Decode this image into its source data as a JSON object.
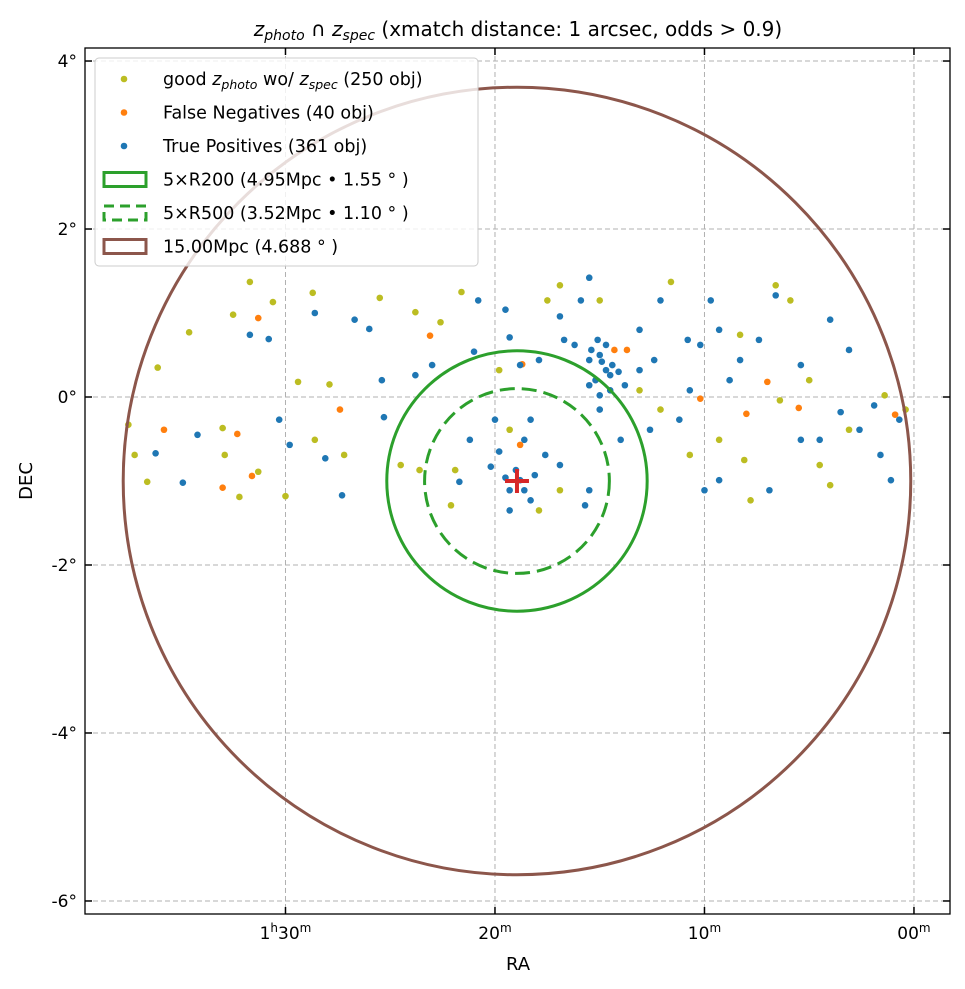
{
  "chart_data": {
    "type": "scatter",
    "title": {
      "z1": "z",
      "s1": "photo",
      "mid": " ∩ ",
      "z2": "z",
      "s2": "spec",
      "rest": " (xmatch distance: 1 arcsec, odds > 0.9)"
    },
    "xlabel": "RA",
    "ylabel": "DEC",
    "xlim": [
      39.57,
      -1.72
    ],
    "ylim": [
      -6.155,
      4.155
    ],
    "x_units": "RA minutes (hour 1 offset: 1h00m = 60)",
    "grid": true,
    "legend_placement": "top-left",
    "xticks": [
      {
        "value": 30,
        "parts": [
          [
            "1",
            ""
          ],
          [
            "h",
            "sup"
          ],
          [
            "30",
            ""
          ],
          [
            "m",
            "sup"
          ]
        ]
      },
      {
        "value": 20,
        "parts": [
          [
            "20",
            ""
          ],
          [
            "m",
            "sup"
          ]
        ]
      },
      {
        "value": 10,
        "parts": [
          [
            "10",
            ""
          ],
          [
            "m",
            "sup"
          ]
        ]
      },
      {
        "value": 0,
        "parts": [
          [
            "00",
            ""
          ],
          [
            "m",
            "sup"
          ]
        ]
      }
    ],
    "yticks": [
      {
        "value": 4,
        "label": "4°"
      },
      {
        "value": 2,
        "label": "2°"
      },
      {
        "value": 0,
        "label": "0°"
      },
      {
        "value": -2,
        "label": "-2°"
      },
      {
        "value": -4,
        "label": "-4°"
      },
      {
        "value": -6,
        "label": "-6°"
      }
    ],
    "center": {
      "ra": 18.95,
      "dec": -1.0,
      "color": "#d62728"
    },
    "circles": [
      {
        "name": "5xR200",
        "radius_deg": 1.55,
        "style": "solid",
        "color": "#2ca02c"
      },
      {
        "name": "5xR500",
        "radius_deg": 1.1,
        "style": "dashed",
        "color": "#2ca02c"
      },
      {
        "name": "15Mpc",
        "radius_deg": 4.688,
        "style": "solid",
        "color": "#8c564b"
      }
    ],
    "legend": [
      {
        "kind": "dot",
        "color": "#bcbd22",
        "pre": "good ",
        "z1": "z",
        "s1": "photo",
        "mid": " wo/ ",
        "z2": "z",
        "s2": "spec",
        "post": " (250 obj)"
      },
      {
        "kind": "dot",
        "color": "#ff7f0e",
        "text": "False Negatives (40 obj)"
      },
      {
        "kind": "dot",
        "color": "#1f77b4",
        "text": "True Positives (361 obj)"
      },
      {
        "kind": "rect",
        "color": "#2ca02c",
        "style": "solid",
        "text": "5×R200 (4.95Mpc • 1.55$^\\circ$)",
        "display": "5×R200 (4.95Mpc • 1.55 ° )"
      },
      {
        "kind": "rect",
        "color": "#2ca02c",
        "style": "dashed",
        "text": "5×R500 (3.52Mpc • 1.10 ° )",
        "display": "5×R500 (3.52Mpc • 1.10 ° )"
      },
      {
        "kind": "rect",
        "color": "#8c564b",
        "style": "solid",
        "text": "15.00Mpc (4.688 ° )",
        "display": "15.00Mpc (4.688 ° )"
      }
    ],
    "series": [
      {
        "name": "good z_photo wo/ z_spec",
        "color": "#bcbd22",
        "points": [
          [
            37.5,
            -0.33
          ],
          [
            37.2,
            -0.69
          ],
          [
            36.6,
            -1.01
          ],
          [
            36.1,
            0.35
          ],
          [
            34.6,
            0.77
          ],
          [
            33.0,
            -0.37
          ],
          [
            32.5,
            0.98
          ],
          [
            31.7,
            1.37
          ],
          [
            31.3,
            -0.89
          ],
          [
            30.6,
            1.13
          ],
          [
            30.0,
            -1.18
          ],
          [
            29.4,
            0.18
          ],
          [
            28.7,
            1.24
          ],
          [
            27.9,
            0.15
          ],
          [
            27.2,
            -0.69
          ],
          [
            25.5,
            1.18
          ],
          [
            23.8,
            1.01
          ],
          [
            22.6,
            0.89
          ],
          [
            21.6,
            1.25
          ],
          [
            24.5,
            -0.81
          ],
          [
            23.6,
            -0.87
          ],
          [
            21.9,
            -0.87
          ],
          [
            22.1,
            -1.29
          ],
          [
            19.8,
            0.32
          ],
          [
            19.3,
            -0.39
          ],
          [
            17.5,
            1.15
          ],
          [
            16.9,
            1.33
          ],
          [
            15.0,
            1.15
          ],
          [
            13.1,
            0.08
          ],
          [
            12.1,
            -0.15
          ],
          [
            11.6,
            1.37
          ],
          [
            10.7,
            -0.69
          ],
          [
            9.3,
            -0.51
          ],
          [
            8.1,
            -0.75
          ],
          [
            7.8,
            -1.23
          ],
          [
            6.6,
            1.33
          ],
          [
            5.9,
            1.15
          ],
          [
            5.0,
            0.2
          ],
          [
            4.5,
            -0.81
          ],
          [
            4.0,
            -1.05
          ],
          [
            3.1,
            -0.39
          ],
          [
            1.4,
            0.02
          ],
          [
            0.4,
            -0.15
          ],
          [
            6.4,
            -0.04
          ],
          [
            8.3,
            0.74
          ],
          [
            16.9,
            -1.11
          ],
          [
            17.9,
            -1.35
          ],
          [
            28.6,
            -0.51
          ],
          [
            32.9,
            -0.69
          ],
          [
            32.2,
            -1.19
          ]
        ]
      },
      {
        "name": "False Negatives",
        "color": "#ff7f0e",
        "points": [
          [
            35.8,
            -0.39
          ],
          [
            33.0,
            -1.08
          ],
          [
            32.3,
            -0.44
          ],
          [
            31.6,
            -0.94
          ],
          [
            31.3,
            0.94
          ],
          [
            27.4,
            -0.15
          ],
          [
            18.7,
            0.39
          ],
          [
            14.3,
            0.56
          ],
          [
            13.7,
            0.56
          ],
          [
            10.2,
            -0.02
          ],
          [
            8.0,
            -0.2
          ],
          [
            7.0,
            0.18
          ],
          [
            5.5,
            -0.13
          ],
          [
            0.9,
            -0.21
          ],
          [
            18.8,
            -0.57
          ],
          [
            23.1,
            0.73
          ]
        ]
      },
      {
        "name": "True Positives",
        "color": "#1f77b4",
        "points": [
          [
            36.2,
            -0.67
          ],
          [
            34.9,
            -1.02
          ],
          [
            34.2,
            -0.45
          ],
          [
            31.7,
            0.74
          ],
          [
            30.8,
            0.69
          ],
          [
            30.3,
            -0.27
          ],
          [
            29.8,
            -0.57
          ],
          [
            28.6,
            1.0
          ],
          [
            28.1,
            -0.73
          ],
          [
            27.3,
            -1.17
          ],
          [
            26.7,
            0.92
          ],
          [
            26.0,
            0.81
          ],
          [
            25.4,
            0.2
          ],
          [
            25.3,
            -0.24
          ],
          [
            23.8,
            0.26
          ],
          [
            23.0,
            0.38
          ],
          [
            21.0,
            0.54
          ],
          [
            20.8,
            1.15
          ],
          [
            19.5,
            1.04
          ],
          [
            19.3,
            0.71
          ],
          [
            18.8,
            0.38
          ],
          [
            17.9,
            0.44
          ],
          [
            16.9,
            0.96
          ],
          [
            15.9,
            1.15
          ],
          [
            15.5,
            1.42
          ],
          [
            15.1,
            0.68
          ],
          [
            15.0,
            0.5
          ],
          [
            14.9,
            0.42
          ],
          [
            14.7,
            0.32
          ],
          [
            14.5,
            0.26
          ],
          [
            15.2,
            0.2
          ],
          [
            15.5,
            0.14
          ],
          [
            15.0,
            0.02
          ],
          [
            14.4,
            0.38
          ],
          [
            14.1,
            0.3
          ],
          [
            15.5,
            0.44
          ],
          [
            15.4,
            0.56
          ],
          [
            14.7,
            0.62
          ],
          [
            14.5,
            0.08
          ],
          [
            13.8,
            0.14
          ],
          [
            13.1,
            0.32
          ],
          [
            12.4,
            0.44
          ],
          [
            12.1,
            1.15
          ],
          [
            10.8,
            0.68
          ],
          [
            9.7,
            1.15
          ],
          [
            9.3,
            0.8
          ],
          [
            8.3,
            0.44
          ],
          [
            7.4,
            0.68
          ],
          [
            6.6,
            1.21
          ],
          [
            5.4,
            0.38
          ],
          [
            4.0,
            0.92
          ],
          [
            3.1,
            0.56
          ],
          [
            3.5,
            -0.18
          ],
          [
            2.6,
            -0.39
          ],
          [
            1.9,
            -0.1
          ],
          [
            1.1,
            -0.99
          ],
          [
            0.7,
            -0.27
          ],
          [
            1.6,
            -0.69
          ],
          [
            4.5,
            -0.51
          ],
          [
            5.4,
            -0.51
          ],
          [
            6.9,
            -1.11
          ],
          [
            9.3,
            -0.99
          ],
          [
            10.0,
            -1.11
          ],
          [
            11.2,
            -0.27
          ],
          [
            12.6,
            -0.39
          ],
          [
            14.0,
            -0.51
          ],
          [
            15.0,
            -0.15
          ],
          [
            19.0,
            -0.87
          ],
          [
            18.8,
            -0.99
          ],
          [
            19.3,
            -1.11
          ],
          [
            19.5,
            -0.96
          ],
          [
            18.6,
            -1.11
          ],
          [
            18.3,
            -1.23
          ],
          [
            19.3,
            -1.35
          ],
          [
            18.1,
            -0.93
          ],
          [
            17.6,
            -0.69
          ],
          [
            19.8,
            -0.65
          ],
          [
            20.2,
            -0.83
          ],
          [
            20.0,
            -0.27
          ],
          [
            21.2,
            -0.51
          ],
          [
            21.7,
            -1.01
          ],
          [
            18.6,
            -0.51
          ],
          [
            18.3,
            -0.27
          ],
          [
            16.9,
            -0.81
          ],
          [
            15.5,
            -1.11
          ],
          [
            15.7,
            -1.29
          ],
          [
            10.7,
            0.08
          ],
          [
            8.8,
            0.2
          ],
          [
            13.1,
            0.8
          ],
          [
            10.2,
            0.62
          ],
          [
            16.2,
            0.62
          ],
          [
            16.7,
            0.68
          ]
        ]
      }
    ]
  }
}
